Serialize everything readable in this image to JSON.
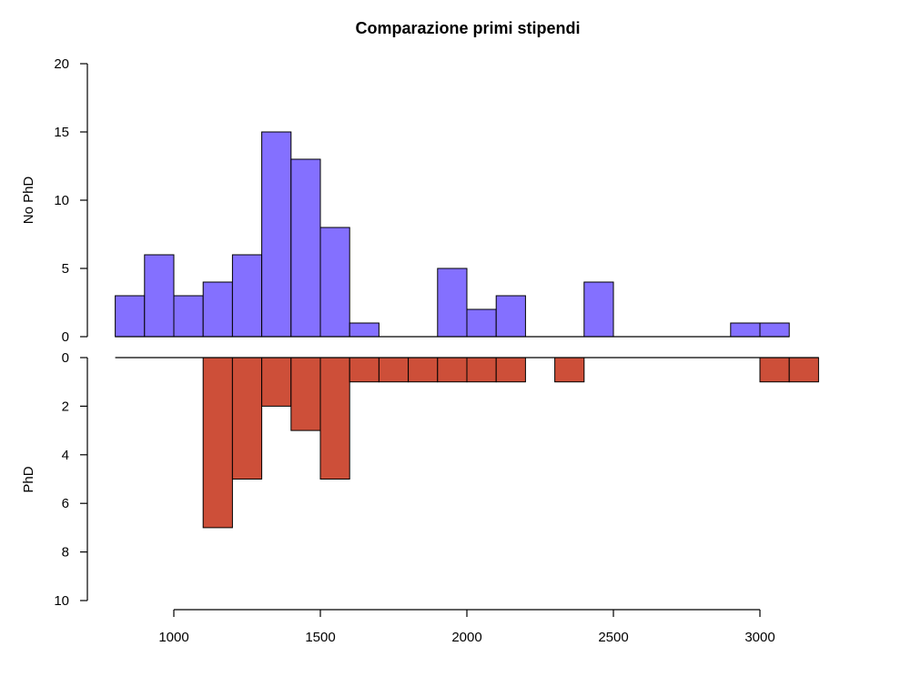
{
  "chart_data": {
    "type": "bar",
    "title": "Comparazione primi stipendi",
    "colors": {
      "top": "#8470FF",
      "bottom": "#CD4F39"
    },
    "x": {
      "label": "",
      "range": [
        700,
        3250
      ],
      "ticks": [
        1000,
        1500,
        2000,
        2500,
        3000
      ],
      "tick_labels": [
        "1000",
        "1500",
        "2000",
        "2500",
        "3000"
      ]
    },
    "top": {
      "ylabel": "No PhD",
      "ylim": [
        0,
        20
      ],
      "ticks": [
        0,
        5,
        10,
        15,
        20
      ],
      "tick_labels": [
        "0",
        "5",
        "10",
        "15",
        "20"
      ]
    },
    "bottom": {
      "ylabel": "PhD",
      "ylim": [
        0,
        10
      ],
      "ticks": [
        0,
        2,
        4,
        6,
        8,
        10
      ],
      "tick_labels": [
        "0",
        "2",
        "4",
        "6",
        "8",
        "10"
      ]
    },
    "bin_width": 100,
    "series": [
      {
        "name": "No PhD",
        "bins": [
          {
            "start": 800,
            "value": 3
          },
          {
            "start": 900,
            "value": 6
          },
          {
            "start": 1000,
            "value": 3
          },
          {
            "start": 1100,
            "value": 4
          },
          {
            "start": 1200,
            "value": 6
          },
          {
            "start": 1300,
            "value": 15
          },
          {
            "start": 1400,
            "value": 13
          },
          {
            "start": 1500,
            "value": 8
          },
          {
            "start": 1600,
            "value": 1
          },
          {
            "start": 1700,
            "value": 0
          },
          {
            "start": 1800,
            "value": 0
          },
          {
            "start": 1900,
            "value": 5
          },
          {
            "start": 2000,
            "value": 2
          },
          {
            "start": 2100,
            "value": 3
          },
          {
            "start": 2200,
            "value": 0
          },
          {
            "start": 2300,
            "value": 0
          },
          {
            "start": 2400,
            "value": 4
          },
          {
            "start": 2500,
            "value": 0
          },
          {
            "start": 2600,
            "value": 0
          },
          {
            "start": 2700,
            "value": 0
          },
          {
            "start": 2800,
            "value": 0
          },
          {
            "start": 2900,
            "value": 1
          },
          {
            "start": 3000,
            "value": 1
          }
        ]
      },
      {
        "name": "PhD",
        "bins": [
          {
            "start": 1100,
            "value": 7
          },
          {
            "start": 1200,
            "value": 5
          },
          {
            "start": 1300,
            "value": 2
          },
          {
            "start": 1400,
            "value": 3
          },
          {
            "start": 1500,
            "value": 5
          },
          {
            "start": 1600,
            "value": 1
          },
          {
            "start": 1700,
            "value": 1
          },
          {
            "start": 1800,
            "value": 1
          },
          {
            "start": 1900,
            "value": 1
          },
          {
            "start": 2000,
            "value": 1
          },
          {
            "start": 2100,
            "value": 1
          },
          {
            "start": 2200,
            "value": 0
          },
          {
            "start": 2300,
            "value": 1
          },
          {
            "start": 2400,
            "value": 0
          },
          {
            "start": 2500,
            "value": 0
          },
          {
            "start": 2600,
            "value": 0
          },
          {
            "start": 2700,
            "value": 0
          },
          {
            "start": 2800,
            "value": 0
          },
          {
            "start": 2900,
            "value": 0
          },
          {
            "start": 3000,
            "value": 1
          },
          {
            "start": 3100,
            "value": 1
          }
        ]
      }
    ]
  }
}
